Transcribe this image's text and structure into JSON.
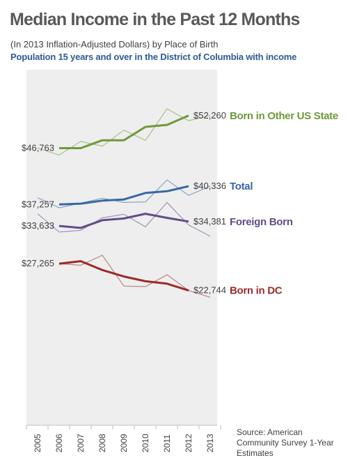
{
  "title": "Median Income in the Past 12 Months",
  "subtitle": "(In 2013 Inflation-Adjusted Dollars) by Place of Birth",
  "subtitle2": "Population 15 years and over in the District of Columbia with income",
  "source": "Source: American Community Survey 1-Year Estimates",
  "chart_data": {
    "type": "line",
    "title": "Median Income in the Past 12 Months",
    "xlabel": "",
    "ylabel": "",
    "categories": [
      "2005",
      "2006",
      "2007",
      "2008",
      "2009",
      "2010",
      "2011",
      "2012",
      "2013"
    ],
    "ylim": [
      0,
      60000
    ],
    "grid": false,
    "legend": "labels at right end of each line",
    "series": [
      {
        "name": "Born in Other US State",
        "color": "#6e9a3a",
        "annual": [
          46800,
          45600,
          47900,
          47100,
          49800,
          48100,
          53400,
          51400,
          52260
        ],
        "trend": [
          null,
          46763,
          46763,
          48100,
          48100,
          50350,
          50700,
          52260,
          null
        ],
        "start_label": "$46,763",
        "end_label": "$52,260"
      },
      {
        "name": "Total",
        "color": "#3a67a6",
        "annual": [
          38400,
          36700,
          37500,
          38300,
          37600,
          37700,
          41400,
          38800,
          40336
        ],
        "trend": [
          null,
          37257,
          37400,
          37900,
          38100,
          39200,
          39500,
          40336,
          null
        ],
        "start_label": "$37,257",
        "end_label": "$40,336"
      },
      {
        "name": "Foreign Born",
        "color": "#614d8a",
        "annual": [
          35700,
          32600,
          32900,
          35000,
          35600,
          33500,
          37600,
          33800,
          31900
        ],
        "trend": [
          null,
          33633,
          33300,
          34600,
          34900,
          35700,
          35000,
          34381,
          null
        ],
        "start_label": "$33,633",
        "end_label": "$34,381"
      },
      {
        "name": "Born in DC",
        "color": "#9b2b2b",
        "annual": [
          null,
          27265,
          27000,
          28700,
          23500,
          23400,
          25400,
          22744,
          21600
        ],
        "trend": [
          null,
          27265,
          27700,
          26200,
          25100,
          24300,
          23900,
          22744,
          null
        ],
        "start_label": "$27,265",
        "end_label": "$22,744"
      }
    ]
  }
}
